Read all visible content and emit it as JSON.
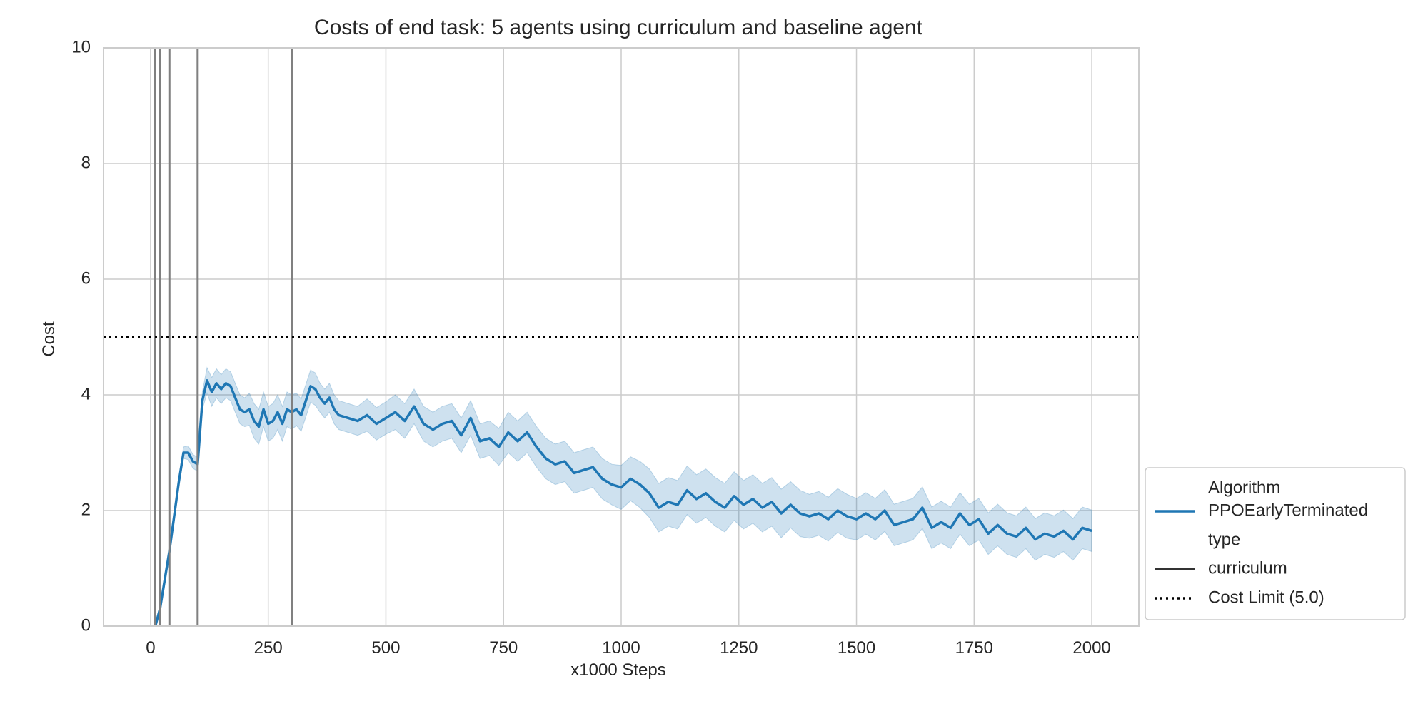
{
  "chart_data": {
    "type": "line",
    "title": "Costs of end task: 5 agents using curriculum and baseline agent",
    "xlabel": "x1000 Steps",
    "ylabel": "Cost",
    "xlim": [
      -100,
      2100
    ],
    "ylim": [
      0,
      10
    ],
    "xticks": [
      0,
      250,
      500,
      750,
      1000,
      1250,
      1500,
      1750,
      2000
    ],
    "yticks": [
      0,
      2,
      4,
      6,
      8,
      10
    ],
    "grid": true,
    "legend_position": "lower-right, outside plot",
    "legend": {
      "title_algorithm": "Algorithm",
      "series_label": "PPOEarlyTerminated",
      "title_type": "type",
      "type_label": "curriculum",
      "limit_label": "Cost Limit (5.0)"
    },
    "colors": {
      "series": "#1f77b4",
      "band": "#1f77b4",
      "curriculum_lines": "#808080",
      "limit_line": "#000000",
      "grid": "#cccccc"
    },
    "cost_limit": 5.0,
    "curriculum_change_points": [
      10,
      20,
      40,
      100,
      300
    ],
    "series": [
      {
        "name": "PPOEarlyTerminated",
        "x": [
          10,
          20,
          30,
          40,
          50,
          60,
          70,
          80,
          90,
          100,
          110,
          120,
          130,
          140,
          150,
          160,
          170,
          180,
          190,
          200,
          210,
          220,
          230,
          240,
          250,
          260,
          270,
          280,
          290,
          300,
          310,
          320,
          330,
          340,
          350,
          360,
          370,
          380,
          390,
          400,
          420,
          440,
          460,
          480,
          500,
          520,
          540,
          560,
          580,
          600,
          620,
          640,
          660,
          680,
          700,
          720,
          740,
          760,
          780,
          800,
          820,
          840,
          860,
          880,
          900,
          920,
          940,
          960,
          980,
          1000,
          1020,
          1040,
          1060,
          1080,
          1100,
          1120,
          1140,
          1160,
          1180,
          1200,
          1220,
          1240,
          1260,
          1280,
          1300,
          1320,
          1340,
          1360,
          1380,
          1400,
          1420,
          1440,
          1460,
          1480,
          1500,
          1520,
          1540,
          1560,
          1580,
          1600,
          1620,
          1640,
          1660,
          1680,
          1700,
          1720,
          1740,
          1760,
          1780,
          1800,
          1820,
          1840,
          1860,
          1880,
          1900,
          1920,
          1940,
          1960,
          1980,
          2000
        ],
        "values": [
          0.0,
          0.3,
          0.8,
          1.3,
          1.9,
          2.5,
          3.0,
          3.0,
          2.85,
          2.8,
          3.9,
          4.25,
          4.05,
          4.2,
          4.1,
          4.2,
          4.15,
          3.95,
          3.75,
          3.7,
          3.75,
          3.55,
          3.45,
          3.75,
          3.5,
          3.55,
          3.7,
          3.5,
          3.75,
          3.7,
          3.75,
          3.65,
          3.9,
          4.15,
          4.1,
          3.95,
          3.85,
          3.95,
          3.75,
          3.65,
          3.6,
          3.55,
          3.65,
          3.5,
          3.6,
          3.7,
          3.55,
          3.8,
          3.5,
          3.4,
          3.5,
          3.55,
          3.3,
          3.6,
          3.2,
          3.25,
          3.1,
          3.35,
          3.2,
          3.35,
          3.1,
          2.9,
          2.8,
          2.85,
          2.65,
          2.7,
          2.75,
          2.55,
          2.45,
          2.4,
          2.55,
          2.45,
          2.3,
          2.05,
          2.15,
          2.1,
          2.35,
          2.2,
          2.3,
          2.15,
          2.05,
          2.25,
          2.1,
          2.2,
          2.05,
          2.15,
          1.95,
          2.1,
          1.95,
          1.9,
          1.95,
          1.85,
          2.0,
          1.9,
          1.85,
          1.95,
          1.85,
          2.0,
          1.75,
          1.8,
          1.85,
          2.05,
          1.7,
          1.8,
          1.7,
          1.95,
          1.75,
          1.85,
          1.6,
          1.75,
          1.6,
          1.55,
          1.7,
          1.5,
          1.6,
          1.55,
          1.65,
          1.5,
          1.7,
          1.65
        ],
        "band_halfwidth": [
          0.05,
          0.05,
          0.05,
          0.05,
          0.05,
          0.08,
          0.1,
          0.12,
          0.12,
          0.12,
          0.15,
          0.22,
          0.25,
          0.25,
          0.25,
          0.25,
          0.25,
          0.25,
          0.25,
          0.25,
          0.28,
          0.3,
          0.3,
          0.3,
          0.3,
          0.3,
          0.3,
          0.3,
          0.3,
          0.3,
          0.28,
          0.28,
          0.28,
          0.28,
          0.28,
          0.25,
          0.25,
          0.25,
          0.25,
          0.25,
          0.25,
          0.25,
          0.28,
          0.28,
          0.28,
          0.3,
          0.3,
          0.3,
          0.3,
          0.3,
          0.3,
          0.3,
          0.3,
          0.3,
          0.3,
          0.3,
          0.32,
          0.35,
          0.35,
          0.35,
          0.35,
          0.35,
          0.35,
          0.35,
          0.35,
          0.35,
          0.35,
          0.35,
          0.35,
          0.38,
          0.38,
          0.4,
          0.42,
          0.42,
          0.42,
          0.42,
          0.42,
          0.42,
          0.42,
          0.42,
          0.42,
          0.42,
          0.42,
          0.42,
          0.42,
          0.42,
          0.42,
          0.4,
          0.4,
          0.38,
          0.38,
          0.38,
          0.38,
          0.38,
          0.36,
          0.36,
          0.36,
          0.36,
          0.36,
          0.36,
          0.36,
          0.36,
          0.36,
          0.36,
          0.36,
          0.36,
          0.36,
          0.36,
          0.36,
          0.36,
          0.36,
          0.36,
          0.36,
          0.36,
          0.36,
          0.36,
          0.36,
          0.36,
          0.36,
          0.36
        ]
      }
    ]
  }
}
